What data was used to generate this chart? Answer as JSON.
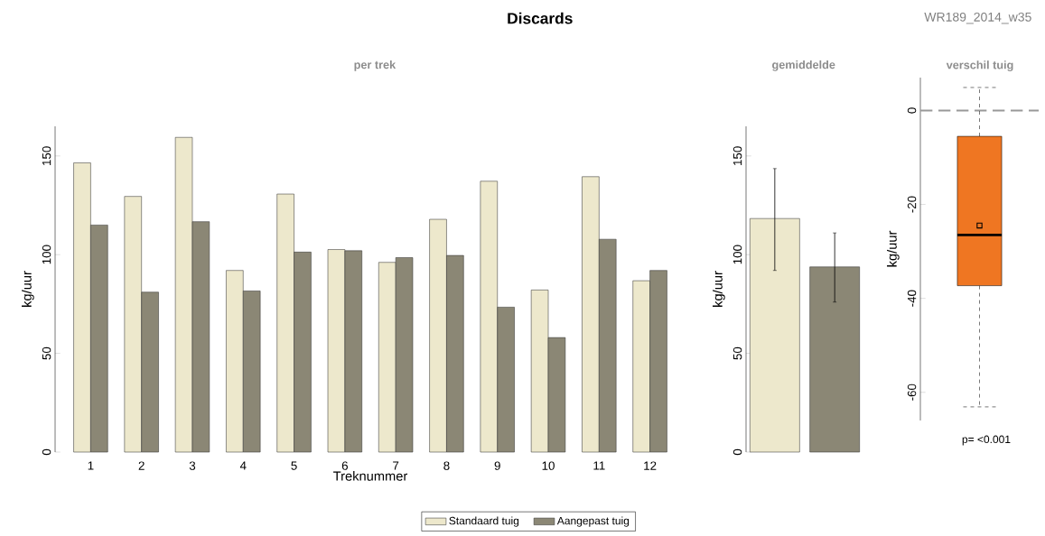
{
  "chart_data": [
    {
      "type": "bar",
      "title": "Discards",
      "subtitle": "per trek",
      "xlabel": "Treknummer",
      "ylabel": "kg/uur",
      "categories": [
        "1",
        "2",
        "3",
        "4",
        "5",
        "6",
        "7",
        "8",
        "9",
        "10",
        "11",
        "12"
      ],
      "series": [
        {
          "name": "Standaard tuig",
          "color": "#ede8cc",
          "values": [
            146.5,
            129.5,
            159.4,
            92,
            130.7,
            102.6,
            96.1,
            117.9,
            137.2,
            82.1,
            139.5,
            86.8
          ]
        },
        {
          "name": "Aangepast tuig",
          "color": "#8b8775",
          "values": [
            115,
            81,
            116.7,
            81.6,
            101.3,
            102,
            98.5,
            99.6,
            73.4,
            58,
            107.8,
            92
          ]
        }
      ],
      "ylim": [
        0,
        165
      ],
      "yticks": [
        0,
        50,
        100,
        150
      ],
      "legend": "bottom",
      "annotations": [
        "WR189_2014_w35"
      ]
    },
    {
      "type": "bar",
      "title": "gemiddelde",
      "ylabel": "kg/uur",
      "categories": [
        null,
        null
      ],
      "values": [
        118.3,
        93.8
      ],
      "colors": [
        "#ede8cc",
        "#8b8775"
      ],
      "errors": [
        [
          92,
          143.6
        ],
        [
          76,
          111
        ]
      ],
      "ylim": [
        0,
        165
      ],
      "yticks": [
        0,
        50,
        100,
        150
      ]
    },
    {
      "type": "box",
      "title": "verschil tuig",
      "ylabel": "kg/uur",
      "categories": [
        null
      ],
      "boxes": [
        {
          "low": -63.1,
          "q1": -37.3,
          "median": -26.5,
          "q3": -5.5,
          "high": 4.9,
          "mean": -24.5
        }
      ],
      "colors": [
        "#ef7622"
      ],
      "ref_lines": [
        {
          "axis": "y",
          "value": 0,
          "color": "#999999",
          "line_style": "dashed"
        }
      ],
      "ylim": [
        -66,
        7
      ],
      "yticks": [
        -60,
        -40,
        -20,
        0
      ],
      "annotations": [
        "p= <0.001"
      ]
    }
  ]
}
